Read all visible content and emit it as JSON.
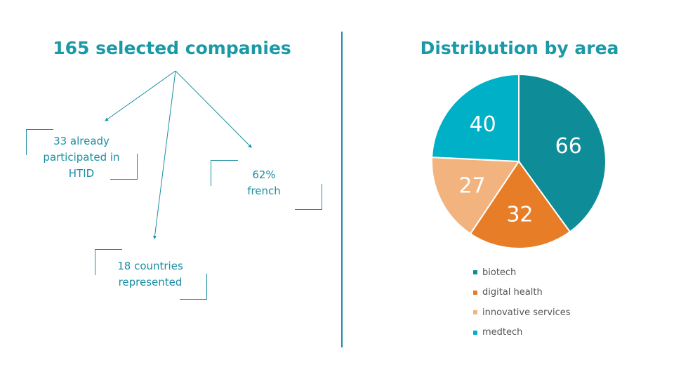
{
  "left": {
    "title": "165 selected companies",
    "callouts": {
      "participated": "33 already participated in HTID",
      "french": "62% french",
      "countries": "18 countries represented"
    }
  },
  "right": {
    "title": "Distribution by area"
  },
  "chart_data": {
    "type": "pie",
    "title": "Distribution by area",
    "categories": [
      "biotech",
      "digital health",
      "innovative services",
      "medtech"
    ],
    "values": [
      66,
      32,
      27,
      40
    ],
    "colors": [
      "#0e8c97",
      "#e87d27",
      "#f2b37f",
      "#00b0c7"
    ],
    "legend_position": "bottom"
  },
  "colors": {
    "accent": "#1a99a6",
    "line": "#1a8fa3"
  }
}
